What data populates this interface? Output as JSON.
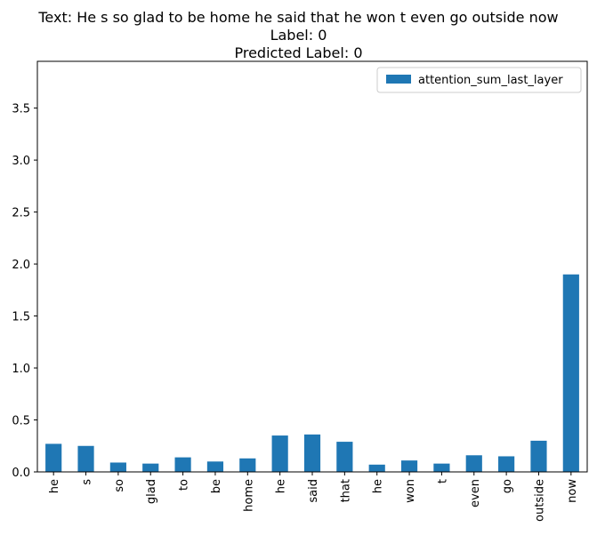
{
  "chart_data": {
    "type": "bar",
    "title_lines": [
      "Text: He s so glad to be home he said that he won t even go outside now",
      "Label: 0",
      "Predicted Label: 0"
    ],
    "categories": [
      "he",
      "s",
      "so",
      "glad",
      "to",
      "be",
      "home",
      "he",
      "said",
      "that",
      "he",
      "won",
      "t",
      "even",
      "go",
      "outside",
      "now"
    ],
    "series": [
      {
        "name": "attention_sum_last_layer",
        "color": "#1f77b4",
        "values": [
          0.27,
          0.25,
          0.09,
          0.08,
          0.14,
          0.1,
          0.13,
          0.35,
          0.36,
          0.29,
          0.07,
          0.11,
          0.08,
          0.16,
          0.15,
          0.3,
          1.9
        ]
      }
    ],
    "ylim": [
      0,
      3.95
    ],
    "yticks": [
      0.0,
      0.5,
      1.0,
      1.5,
      2.0,
      2.5,
      3.0,
      3.5
    ],
    "ytick_labels": [
      "0.0",
      "0.5",
      "1.0",
      "1.5",
      "2.0",
      "2.5",
      "3.0",
      "3.5"
    ],
    "xlabel": "",
    "ylabel": "",
    "grid": false,
    "legend_position": "top-right"
  }
}
